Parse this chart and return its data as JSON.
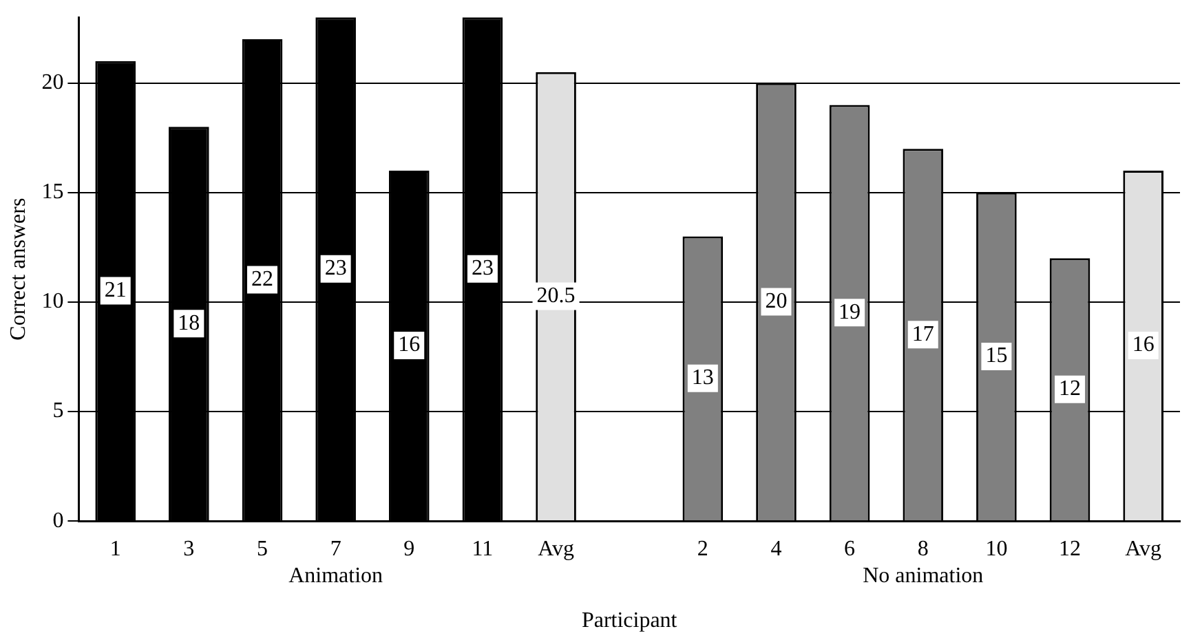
{
  "chart_data": {
    "type": "bar",
    "xlabel": "Participant",
    "ylabel": "Correct answers",
    "categories": [
      "1",
      "3",
      "5",
      "7",
      "9",
      "11",
      "Avg",
      null,
      "2",
      "4",
      "6",
      "8",
      "10",
      "12",
      "Avg"
    ],
    "values": [
      21,
      18,
      22,
      23,
      16,
      23,
      20.5,
      null,
      13,
      20,
      19,
      17,
      15,
      12,
      16
    ],
    "colors": [
      "#000000",
      "#000000",
      "#000000",
      "#000000",
      "#000000",
      "#000000",
      "#e0e0e0",
      "#000000",
      "#808080",
      "#808080",
      "#808080",
      "#808080",
      "#808080",
      "#808080",
      "#e0e0e0"
    ],
    "ylim": [
      0,
      23
    ],
    "yticks": [
      0,
      5,
      10,
      15,
      20
    ],
    "grid": "y",
    "legend": false,
    "data_labels": true,
    "annotations": [
      "Animation",
      "No animation"
    ]
  }
}
